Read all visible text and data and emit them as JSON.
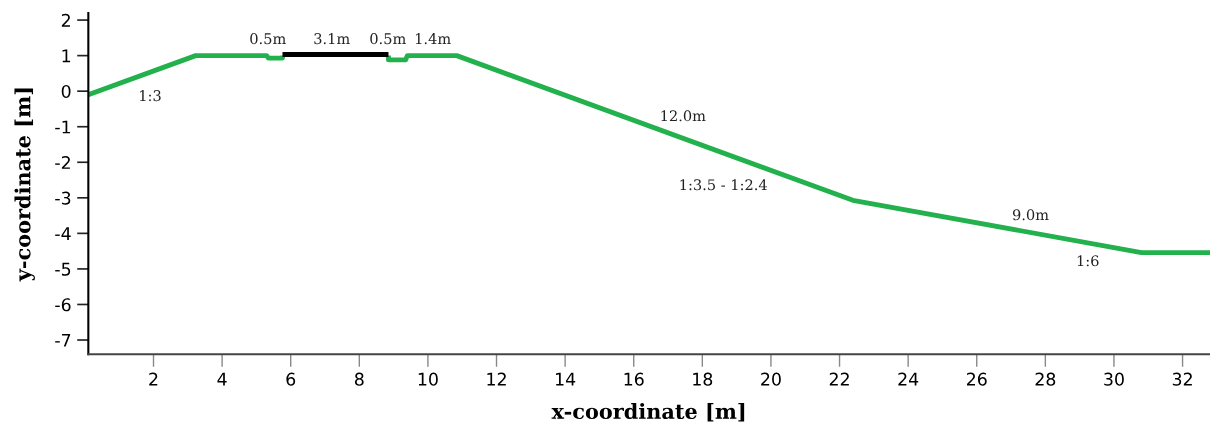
{
  "chart_data": {
    "type": "line",
    "xlabel": "x-coordinate [m]",
    "ylabel": "y-coordinate [m]",
    "series": [
      {
        "color": "#22b14c",
        "x": [
          0.1,
          3.23,
          5.3,
          5.35,
          5.76,
          5.76,
          7.3,
          8.85,
          8.85,
          9.35,
          9.4,
          10.84,
          22.39,
          30.8,
          32.8
        ],
        "values": [
          -0.1,
          1.0,
          1.0,
          0.93,
          0.93,
          1.0,
          null,
          1.0,
          0.88,
          0.88,
          1.0,
          1.0,
          -3.07,
          -4.54,
          -4.54
        ]
      },
      {
        "color": "#000000",
        "x": [
          5.76,
          8.85
        ],
        "values": [
          1.03,
          1.03
        ]
      }
    ],
    "annotations": [
      "1:3",
      "0.5m",
      "3.1m",
      "0.5m",
      "1.4m",
      "12.0m",
      "1:3.5 - 1:2.4",
      "9.0m",
      "1:6"
    ],
    "xlim": [
      0.1,
      32.8
    ],
    "ylim": [
      -7.4,
      2.2
    ],
    "xticks": [
      2,
      4,
      6,
      8,
      10,
      12,
      14,
      16,
      18,
      20,
      22,
      24,
      26,
      28,
      30,
      32
    ],
    "yticks": [
      -7,
      -6,
      -5,
      -4,
      -3,
      -2,
      -1,
      0,
      1,
      2
    ],
    "grid": false,
    "legend": false,
    "marker": "none",
    "line_style": "solid"
  }
}
